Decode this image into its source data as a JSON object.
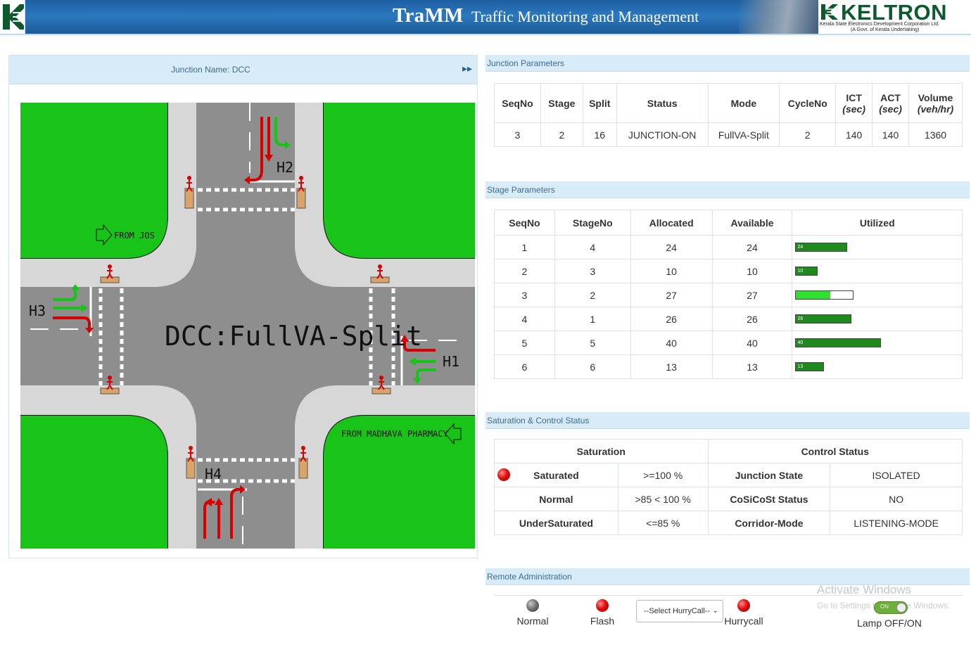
{
  "header": {
    "title": "TraMM",
    "subtitle": "Traffic Monitoring and Management",
    "brand_name": "KELTRON",
    "brand_line1": "Kerala State Electronics Development Corporation Ltd.",
    "brand_line2": "(A Govt. of Kerala Undertaking)"
  },
  "junction": {
    "title": "Junction Name: DCC",
    "toggle_icon": "double-chevron-right-icon",
    "map_center_label": "DCC:FullVA-Split",
    "labels": {
      "h1": "H1",
      "h2": "H2",
      "h3": "H3",
      "h4": "H4",
      "from_jos": "FROM JOS",
      "from_madhava": "FROM MADHAVA PHARMACY"
    }
  },
  "junction_parameters": {
    "title": "Junction Parameters",
    "headers": {
      "seqno": "SeqNo",
      "stage": "Stage",
      "split": "Split",
      "status": "Status",
      "mode": "Mode",
      "cycleno": "CycleNo",
      "ict": "ICT",
      "ict_unit": "(sec)",
      "act": "ACT",
      "act_unit": "(sec)",
      "volume": "Volume",
      "volume_unit": "(veh/hr)"
    },
    "row": {
      "seqno": "3",
      "stage": "2",
      "split": "16",
      "status": "JUNCTION-ON",
      "mode": "FullVA-Split",
      "cycleno": "2",
      "ict": "140",
      "act": "140",
      "volume": "1360"
    }
  },
  "stage_parameters": {
    "title": "Stage Parameters",
    "headers": {
      "seqno": "SeqNo",
      "stageno": "StageNo",
      "allocated": "Allocated",
      "available": "Available",
      "utilized": "Utilized"
    },
    "rows": [
      {
        "seqno": "1",
        "stageno": "4",
        "allocated": "24",
        "available": "24",
        "bar_label": "24",
        "fill": 1.0,
        "bar_max": 40
      },
      {
        "seqno": "2",
        "stageno": "3",
        "allocated": "10",
        "available": "10",
        "bar_label": "10",
        "fill": 1.0,
        "bar_max": 40
      },
      {
        "seqno": "3",
        "stageno": "2",
        "allocated": "27",
        "available": "27",
        "bar_label": "",
        "fill": 0.6,
        "bar_max": 40
      },
      {
        "seqno": "4",
        "stageno": "1",
        "allocated": "26",
        "available": "26",
        "bar_label": "26",
        "fill": 1.0,
        "bar_max": 40
      },
      {
        "seqno": "5",
        "stageno": "5",
        "allocated": "40",
        "available": "40",
        "bar_label": "40",
        "fill": 1.0,
        "bar_max": 40
      },
      {
        "seqno": "6",
        "stageno": "6",
        "allocated": "13",
        "available": "13",
        "bar_label": "13",
        "fill": 1.0,
        "bar_max": 40
      }
    ],
    "colors": {
      "full": "#1e8a1e",
      "active": "#2fe02f"
    }
  },
  "saturation": {
    "title": "Saturation & Control Status",
    "saturation_header": "Saturation",
    "control_header": "Control Status",
    "rows": [
      {
        "label": "Saturated",
        "range": ">=100 %",
        "ctrl_label": "Junction State",
        "ctrl_value": "ISOLATED"
      },
      {
        "label": "Normal",
        "range": ">85 < 100 %",
        "ctrl_label": "CoSiCoSt Status",
        "ctrl_value": "NO"
      },
      {
        "label": "UnderSaturated",
        "range": "<=85 %",
        "ctrl_label": "Corridor-Mode",
        "ctrl_value": "LISTENING-MODE"
      }
    ]
  },
  "remote": {
    "title": "Remote Administration",
    "normal_label": "Normal",
    "flash_label": "Flash",
    "hurry_select": "--Select HurryCall--",
    "hurry_label": "Hurrycall",
    "lamp_label": "Lamp OFF/ON",
    "toggle_text": "ON"
  },
  "watermark": {
    "line1": "Activate Windows",
    "line2": "Go to Settings to activate Windows."
  }
}
